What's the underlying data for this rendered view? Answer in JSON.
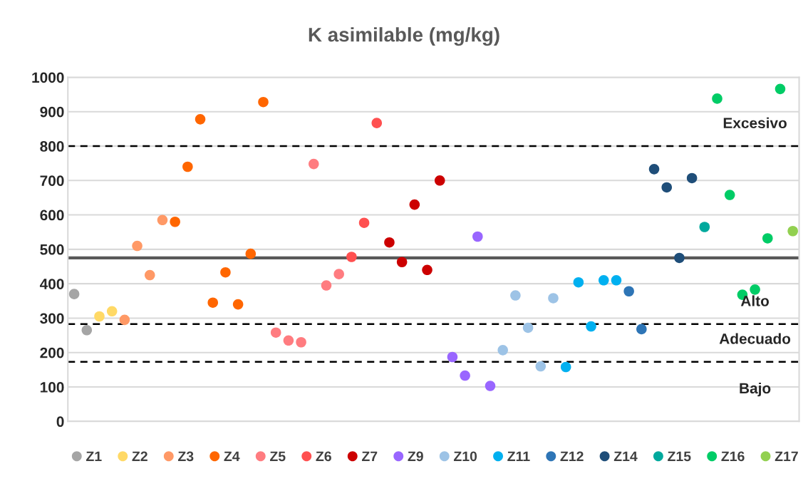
{
  "chart_data": {
    "type": "scatter",
    "title": "K asimilable (mg/kg)",
    "categories": [
      null,
      null,
      null,
      null,
      null,
      null,
      null,
      null,
      null,
      null,
      null,
      null,
      null,
      null,
      null,
      null,
      null,
      null,
      null,
      null,
      null,
      null,
      null,
      null,
      null,
      null,
      null,
      null,
      null,
      null,
      null,
      null,
      null,
      null,
      null,
      null,
      null,
      null,
      null,
      null,
      null,
      null,
      null,
      null,
      null,
      null,
      null,
      null,
      null,
      null,
      null,
      null,
      null,
      null,
      null,
      null,
      null,
      null
    ],
    "ylim": [
      0,
      1000
    ],
    "yticks": [
      0,
      100,
      200,
      300,
      400,
      500,
      600,
      700,
      800,
      900,
      1000
    ],
    "tick_labels": "y",
    "grid": "y",
    "legend": "bottom",
    "marker": "circle",
    "ref_lines": [
      {
        "axis": "y",
        "value": 800,
        "color": "#000000",
        "line_style": "dashed",
        "label": "Excesivo"
      },
      {
        "axis": "y",
        "value": 283,
        "color": "#000000",
        "line_style": "dashed",
        "label": "Alto"
      },
      {
        "axis": "y",
        "value": 173,
        "color": "#000000",
        "line_style": "dashed",
        "label": "Adecuado"
      },
      {
        "axis": "y",
        "value": 475,
        "color": "#595959",
        "line_style": "solid"
      }
    ],
    "annotations": [
      "Bajo"
    ],
    "series": [
      {
        "name": "Z1",
        "color": "#a5a5a5",
        "values": [
          370,
          265,
          null,
          null,
          null,
          null,
          null,
          null,
          null,
          null,
          null,
          null,
          null,
          null,
          null,
          null,
          null,
          null,
          null,
          null,
          null,
          null,
          null,
          null,
          null,
          null,
          null,
          null,
          null,
          null,
          null,
          null,
          null,
          null,
          null,
          null,
          null,
          null,
          null,
          null,
          null,
          null,
          null,
          null,
          null,
          null,
          null,
          null,
          null,
          null,
          null,
          null,
          null,
          null,
          null,
          null,
          null,
          null
        ]
      },
      {
        "name": "Z2",
        "color": "#ffd966",
        "values": [
          null,
          null,
          305,
          320,
          null,
          null,
          null,
          null,
          null,
          null,
          null,
          null,
          null,
          null,
          null,
          null,
          null,
          null,
          null,
          null,
          null,
          null,
          null,
          null,
          null,
          null,
          null,
          null,
          null,
          null,
          null,
          null,
          null,
          null,
          null,
          null,
          null,
          null,
          null,
          null,
          null,
          null,
          null,
          null,
          null,
          null,
          null,
          null,
          null,
          null,
          null,
          null,
          null,
          null,
          null,
          null,
          null,
          null
        ]
      },
      {
        "name": "Z3",
        "color": "#ff9966",
        "values": [
          null,
          null,
          null,
          null,
          295,
          510,
          425,
          585,
          null,
          null,
          null,
          null,
          null,
          null,
          null,
          null,
          null,
          null,
          null,
          null,
          null,
          null,
          null,
          null,
          null,
          null,
          null,
          null,
          null,
          null,
          null,
          null,
          null,
          null,
          null,
          null,
          null,
          null,
          null,
          null,
          null,
          null,
          null,
          null,
          null,
          null,
          null,
          null,
          null,
          null,
          null,
          null,
          null,
          null,
          null,
          null,
          null,
          null
        ]
      },
      {
        "name": "Z4",
        "color": "#ff6600",
        "values": [
          null,
          null,
          null,
          null,
          null,
          null,
          null,
          null,
          580,
          740,
          878,
          345,
          433,
          340,
          487,
          928,
          null,
          null,
          null,
          null,
          null,
          null,
          null,
          null,
          null,
          null,
          null,
          null,
          null,
          null,
          null,
          null,
          null,
          null,
          null,
          null,
          null,
          null,
          null,
          null,
          null,
          null,
          null,
          null,
          null,
          null,
          null,
          null,
          null,
          null,
          null,
          null,
          null,
          null,
          null,
          null,
          null,
          null
        ]
      },
      {
        "name": "Z5",
        "color": "#ff7c80",
        "values": [
          null,
          null,
          null,
          null,
          null,
          null,
          null,
          null,
          null,
          null,
          null,
          null,
          null,
          null,
          null,
          null,
          258,
          235,
          230,
          748,
          395,
          428,
          null,
          null,
          null,
          null,
          null,
          null,
          null,
          null,
          null,
          null,
          null,
          null,
          null,
          null,
          null,
          null,
          null,
          null,
          null,
          null,
          null,
          null,
          null,
          null,
          null,
          null,
          null,
          null,
          null,
          null,
          null,
          null,
          null,
          null,
          null,
          null
        ]
      },
      {
        "name": "Z6",
        "color": "#ff5050",
        "values": [
          null,
          null,
          null,
          null,
          null,
          null,
          null,
          null,
          null,
          null,
          null,
          null,
          null,
          null,
          null,
          null,
          null,
          null,
          null,
          null,
          null,
          null,
          478,
          577,
          867,
          null,
          null,
          null,
          null,
          null,
          null,
          null,
          null,
          null,
          null,
          null,
          null,
          null,
          null,
          null,
          null,
          null,
          null,
          null,
          null,
          null,
          null,
          null,
          null,
          null,
          null,
          null,
          null,
          null,
          null,
          null,
          null,
          null
        ]
      },
      {
        "name": "Z7",
        "color": "#cc0000",
        "values": [
          null,
          null,
          null,
          null,
          null,
          null,
          null,
          null,
          null,
          null,
          null,
          null,
          null,
          null,
          null,
          null,
          null,
          null,
          null,
          null,
          null,
          null,
          null,
          null,
          null,
          520,
          463,
          630,
          440,
          700,
          null,
          null,
          null,
          null,
          null,
          null,
          null,
          null,
          null,
          null,
          null,
          null,
          null,
          null,
          null,
          null,
          null,
          null,
          null,
          null,
          null,
          null,
          null,
          null,
          null,
          null,
          null,
          null
        ]
      },
      {
        "name": "Z9",
        "color": "#9966ff",
        "values": [
          null,
          null,
          null,
          null,
          null,
          null,
          null,
          null,
          null,
          null,
          null,
          null,
          null,
          null,
          null,
          null,
          null,
          null,
          null,
          null,
          null,
          null,
          null,
          null,
          null,
          null,
          null,
          null,
          null,
          null,
          187,
          133,
          537,
          103,
          null,
          null,
          null,
          null,
          null,
          null,
          null,
          null,
          null,
          null,
          null,
          null,
          null,
          null,
          null,
          null,
          null,
          null,
          null,
          null,
          null,
          null,
          null,
          null
        ]
      },
      {
        "name": "Z10",
        "color": "#9dc3e6",
        "values": [
          null,
          null,
          null,
          null,
          null,
          null,
          null,
          null,
          null,
          null,
          null,
          null,
          null,
          null,
          null,
          null,
          null,
          null,
          null,
          null,
          null,
          null,
          null,
          null,
          null,
          null,
          null,
          null,
          null,
          null,
          null,
          null,
          null,
          null,
          207,
          366,
          272,
          160,
          358,
          null,
          null,
          null,
          null,
          null,
          null,
          null,
          null,
          null,
          null,
          null,
          null,
          null,
          null,
          null,
          null,
          null,
          null,
          null
        ]
      },
      {
        "name": "Z11",
        "color": "#00b0f0",
        "values": [
          null,
          null,
          null,
          null,
          null,
          null,
          null,
          null,
          null,
          null,
          null,
          null,
          null,
          null,
          null,
          null,
          null,
          null,
          null,
          null,
          null,
          null,
          null,
          null,
          null,
          null,
          null,
          null,
          null,
          null,
          null,
          null,
          null,
          null,
          null,
          null,
          null,
          null,
          null,
          158,
          404,
          276,
          410,
          410,
          null,
          null,
          null,
          null,
          null,
          null,
          null,
          null,
          null,
          null,
          null,
          null,
          null,
          null
        ]
      },
      {
        "name": "Z12",
        "color": "#2e75b6",
        "values": [
          null,
          null,
          null,
          null,
          null,
          null,
          null,
          null,
          null,
          null,
          null,
          null,
          null,
          null,
          null,
          null,
          null,
          null,
          null,
          null,
          null,
          null,
          null,
          null,
          null,
          null,
          null,
          null,
          null,
          null,
          null,
          null,
          null,
          null,
          null,
          null,
          null,
          null,
          null,
          null,
          null,
          null,
          null,
          null,
          378,
          268,
          null,
          null,
          null,
          null,
          null,
          null,
          null,
          null,
          null,
          null,
          null,
          null
        ]
      },
      {
        "name": "Z14",
        "color": "#1f4e79",
        "values": [
          null,
          null,
          null,
          null,
          null,
          null,
          null,
          null,
          null,
          null,
          null,
          null,
          null,
          null,
          null,
          null,
          null,
          null,
          null,
          null,
          null,
          null,
          null,
          null,
          null,
          null,
          null,
          null,
          null,
          null,
          null,
          null,
          null,
          null,
          null,
          null,
          null,
          null,
          null,
          null,
          null,
          null,
          null,
          null,
          null,
          null,
          733,
          680,
          475,
          707,
          null,
          null,
          null,
          null,
          null,
          null,
          null,
          null
        ]
      },
      {
        "name": "Z15",
        "color": "#00a99d",
        "values": [
          null,
          null,
          null,
          null,
          null,
          null,
          null,
          null,
          null,
          null,
          null,
          null,
          null,
          null,
          null,
          null,
          null,
          null,
          null,
          null,
          null,
          null,
          null,
          null,
          null,
          null,
          null,
          null,
          null,
          null,
          null,
          null,
          null,
          null,
          null,
          null,
          null,
          null,
          null,
          null,
          null,
          null,
          null,
          null,
          null,
          null,
          null,
          null,
          null,
          null,
          565,
          null,
          null,
          null,
          null,
          null,
          null,
          null
        ]
      },
      {
        "name": "Z16",
        "color": "#00cc66",
        "values": [
          null,
          null,
          null,
          null,
          null,
          null,
          null,
          null,
          null,
          null,
          null,
          null,
          null,
          null,
          null,
          null,
          null,
          null,
          null,
          null,
          null,
          null,
          null,
          null,
          null,
          null,
          null,
          null,
          null,
          null,
          null,
          null,
          null,
          null,
          null,
          null,
          null,
          null,
          null,
          null,
          null,
          null,
          null,
          null,
          null,
          null,
          null,
          null,
          null,
          null,
          null,
          938,
          658,
          368,
          383,
          532,
          966,
          null
        ]
      },
      {
        "name": "Z17",
        "color": "#92d050",
        "values": [
          null,
          null,
          null,
          null,
          null,
          null,
          null,
          null,
          null,
          null,
          null,
          null,
          null,
          null,
          null,
          null,
          null,
          null,
          null,
          null,
          null,
          null,
          null,
          null,
          null,
          null,
          null,
          null,
          null,
          null,
          null,
          null,
          null,
          null,
          null,
          null,
          null,
          null,
          null,
          null,
          null,
          null,
          null,
          null,
          null,
          null,
          null,
          null,
          null,
          null,
          null,
          null,
          null,
          null,
          null,
          null,
          null,
          553
        ]
      }
    ]
  }
}
